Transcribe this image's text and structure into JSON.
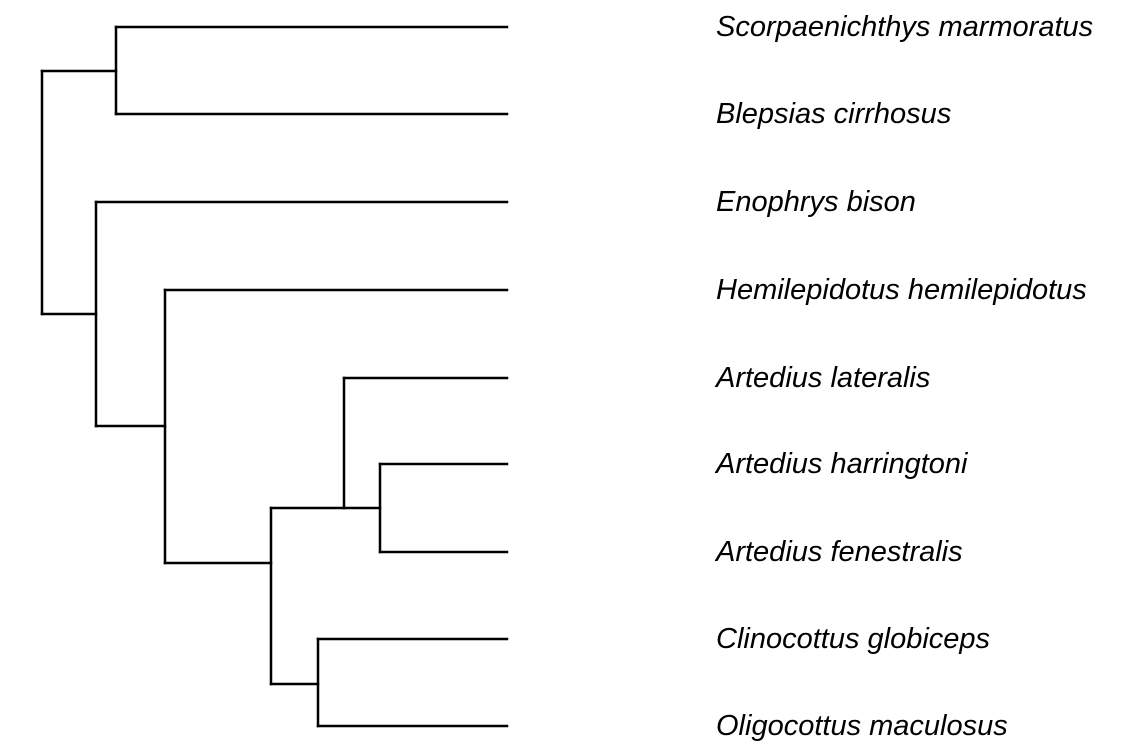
{
  "tree": {
    "taxa": [
      "Scorpaenichthys marmoratus",
      "Blepsias cirrhosus",
      "Enophrys bison",
      "Hemilepidotus hemilepidotus",
      "Artedius lateralis",
      "Artedius harringtoni",
      "Artedius fenestralis",
      "Clinocottus globiceps",
      "Oligocottus maculosus"
    ],
    "newick": "((Scorpaenichthys marmoratus,Blepsias cirrhosus),(Enophrys bison,(Hemilepidotus hemilepidotus,((Artedius lateralis,(Artedius harringtoni,Artedius fenestralis)),(Clinocottus globiceps,Oligocottus maculosus)))));",
    "line_color": "#000000",
    "label_color": "#000000"
  }
}
